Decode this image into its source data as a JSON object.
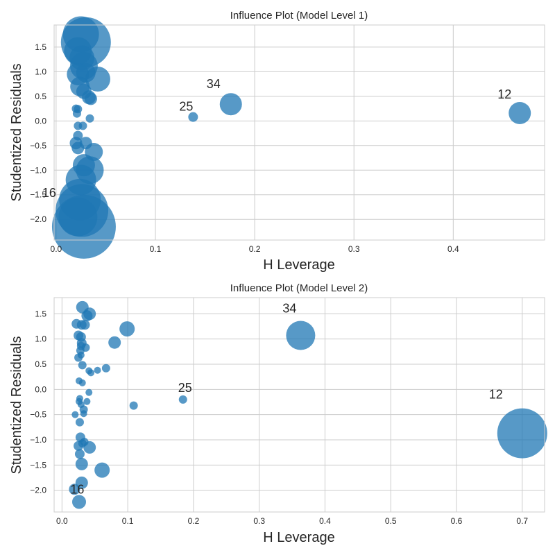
{
  "chart_data": [
    {
      "type": "scatter",
      "title": "Influence Plot (Model Level 1)",
      "xlabel": "H Leverage",
      "ylabel": "Studentized Residuals",
      "xlim": [
        -0.002,
        0.492
      ],
      "ylim": [
        -2.42,
        1.95
      ],
      "xticks": [
        0.0,
        0.1,
        0.2,
        0.3,
        0.4
      ],
      "xtick_labels": [
        "0.0",
        "0.1",
        "0.2",
        "0.3",
        "0.4"
      ],
      "yticks": [
        -2.0,
        -1.5,
        -1.0,
        -0.5,
        0.0,
        0.5,
        1.0,
        1.5
      ],
      "ytick_labels": [
        "−2.0",
        "−1.5",
        "−1.0",
        "−0.5",
        "0.0",
        "0.5",
        "1.0",
        "1.5"
      ],
      "grid": true,
      "color": "#1f77b4",
      "points": [
        {
          "x": 0.025,
          "y": 1.76,
          "size": 26
        },
        {
          "x": 0.03,
          "y": 1.6,
          "size": 36
        },
        {
          "x": 0.022,
          "y": 1.42,
          "size": 20
        },
        {
          "x": 0.026,
          "y": 1.28,
          "size": 18
        },
        {
          "x": 0.028,
          "y": 1.12,
          "size": 20
        },
        {
          "x": 0.022,
          "y": 0.95,
          "size": 16
        },
        {
          "x": 0.03,
          "y": 0.98,
          "size": 14
        },
        {
          "x": 0.042,
          "y": 0.85,
          "size": 18
        },
        {
          "x": 0.024,
          "y": 0.7,
          "size": 14
        },
        {
          "x": 0.028,
          "y": 0.6,
          "size": 11
        },
        {
          "x": 0.033,
          "y": 0.48,
          "size": 10
        },
        {
          "x": 0.035,
          "y": 0.45,
          "size": 9
        },
        {
          "x": 0.02,
          "y": 0.25,
          "size": 6
        },
        {
          "x": 0.022,
          "y": 0.24,
          "size": 6
        },
        {
          "x": 0.021,
          "y": 0.15,
          "size": 6
        },
        {
          "x": 0.034,
          "y": 0.05,
          "size": 6
        },
        {
          "x": 0.022,
          "y": -0.1,
          "size": 6
        },
        {
          "x": 0.027,
          "y": -0.1,
          "size": 6
        },
        {
          "x": 0.022,
          "y": -0.3,
          "size": 7
        },
        {
          "x": 0.03,
          "y": -0.45,
          "size": 9
        },
        {
          "x": 0.02,
          "y": -0.45,
          "size": 9
        },
        {
          "x": 0.022,
          "y": -0.55,
          "size": 9
        },
        {
          "x": 0.038,
          "y": -0.63,
          "size": 13
        },
        {
          "x": 0.028,
          "y": -0.9,
          "size": 16
        },
        {
          "x": 0.034,
          "y": -1.0,
          "size": 20
        },
        {
          "x": 0.025,
          "y": -1.2,
          "size": 22
        },
        {
          "x": 0.024,
          "y": -1.6,
          "size": 30
        },
        {
          "x": 0.026,
          "y": -1.82,
          "size": 38
        },
        {
          "x": 0.022,
          "y": -1.95,
          "size": 28
        },
        {
          "x": 0.028,
          "y": -2.15,
          "size": 46
        },
        {
          "x": 0.138,
          "y": 0.08,
          "size": 7,
          "label": "25"
        },
        {
          "x": 0.176,
          "y": 0.34,
          "size": 16,
          "label": "34"
        },
        {
          "x": 0.467,
          "y": 0.16,
          "size": 16,
          "label": "12"
        }
      ],
      "annotations": [
        {
          "text": "34",
          "x": 0.176,
          "y": 0.34,
          "dx": -25,
          "dy": -23
        },
        {
          "text": "25",
          "x": 0.138,
          "y": 0.08,
          "dx": -10,
          "dy": -9
        },
        {
          "text": "12",
          "x": 0.467,
          "y": 0.16,
          "dx": -22,
          "dy": -21
        },
        {
          "text": "16",
          "x": 0.0,
          "y": -1.55,
          "dx": -10,
          "dy": -0.5
        }
      ]
    },
    {
      "type": "scatter",
      "title": "Influence Plot (Model Level 2)",
      "xlabel": "H Leverage",
      "ylabel": "Studentized Residuals",
      "xlim": [
        -0.012,
        0.734
      ],
      "ylim": [
        -2.43,
        1.82
      ],
      "xticks": [
        0.0,
        0.1,
        0.2,
        0.3,
        0.4,
        0.5,
        0.6,
        0.7
      ],
      "xtick_labels": [
        "0.0",
        "0.1",
        "0.2",
        "0.3",
        "0.4",
        "0.5",
        "0.6",
        "0.7"
      ],
      "yticks": [
        -2.0,
        -1.5,
        -1.0,
        -0.5,
        0.0,
        0.5,
        1.0,
        1.5
      ],
      "ytick_labels": [
        "−2.0",
        "−1.5",
        "−1.0",
        "−0.5",
        "0.0",
        "0.5",
        "1.0",
        "1.5"
      ],
      "grid": true,
      "color": "#1f77b4",
      "points": [
        {
          "x": 0.031,
          "y": 1.63,
          "size": 9
        },
        {
          "x": 0.042,
          "y": 1.5,
          "size": 9
        },
        {
          "x": 0.038,
          "y": 1.46,
          "size": 8
        },
        {
          "x": 0.022,
          "y": 1.3,
          "size": 7
        },
        {
          "x": 0.03,
          "y": 1.28,
          "size": 7
        },
        {
          "x": 0.035,
          "y": 1.28,
          "size": 7
        },
        {
          "x": 0.099,
          "y": 1.2,
          "size": 11
        },
        {
          "x": 0.025,
          "y": 1.07,
          "size": 7
        },
        {
          "x": 0.029,
          "y": 1.04,
          "size": 7
        },
        {
          "x": 0.03,
          "y": 0.92,
          "size": 7
        },
        {
          "x": 0.08,
          "y": 0.93,
          "size": 9
        },
        {
          "x": 0.029,
          "y": 0.86,
          "size": 6
        },
        {
          "x": 0.036,
          "y": 0.83,
          "size": 6
        },
        {
          "x": 0.028,
          "y": 0.77,
          "size": 6
        },
        {
          "x": 0.029,
          "y": 0.68,
          "size": 5
        },
        {
          "x": 0.025,
          "y": 0.63,
          "size": 6
        },
        {
          "x": 0.031,
          "y": 0.48,
          "size": 6
        },
        {
          "x": 0.067,
          "y": 0.42,
          "size": 6
        },
        {
          "x": 0.054,
          "y": 0.38,
          "size": 5
        },
        {
          "x": 0.041,
          "y": 0.37,
          "size": 5
        },
        {
          "x": 0.044,
          "y": 0.33,
          "size": 5
        },
        {
          "x": 0.026,
          "y": 0.17,
          "size": 5
        },
        {
          "x": 0.031,
          "y": 0.13,
          "size": 5
        },
        {
          "x": 0.041,
          "y": -0.06,
          "size": 5
        },
        {
          "x": 0.027,
          "y": -0.18,
          "size": 5
        },
        {
          "x": 0.184,
          "y": -0.2,
          "size": 6,
          "label": "25"
        },
        {
          "x": 0.026,
          "y": -0.24,
          "size": 5
        },
        {
          "x": 0.038,
          "y": -0.24,
          "size": 5
        },
        {
          "x": 0.029,
          "y": -0.3,
          "size": 5
        },
        {
          "x": 0.109,
          "y": -0.32,
          "size": 6
        },
        {
          "x": 0.033,
          "y": -0.4,
          "size": 6
        },
        {
          "x": 0.033,
          "y": -0.48,
          "size": 5
        },
        {
          "x": 0.02,
          "y": -0.5,
          "size": 5
        },
        {
          "x": 0.027,
          "y": -0.65,
          "size": 6
        },
        {
          "x": 0.7,
          "y": -0.87,
          "size": 36,
          "label": "12"
        },
        {
          "x": 0.028,
          "y": -0.95,
          "size": 7
        },
        {
          "x": 0.034,
          "y": -1.04,
          "size": 6
        },
        {
          "x": 0.031,
          "y": -1.07,
          "size": 6
        },
        {
          "x": 0.025,
          "y": -1.12,
          "size": 7
        },
        {
          "x": 0.042,
          "y": -1.15,
          "size": 9
        },
        {
          "x": 0.027,
          "y": -1.28,
          "size": 7
        },
        {
          "x": 0.03,
          "y": -1.48,
          "size": 9
        },
        {
          "x": 0.061,
          "y": -1.6,
          "size": 11
        },
        {
          "x": 0.03,
          "y": -1.85,
          "size": 9
        },
        {
          "x": 0.019,
          "y": -1.98,
          "size": 8
        },
        {
          "x": 0.026,
          "y": -2.23,
          "size": 10
        },
        {
          "x": 0.363,
          "y": 1.07,
          "size": 21,
          "label": "34"
        }
      ],
      "annotations": [
        {
          "text": "34",
          "x": 0.363,
          "y": 1.07,
          "dx": -16,
          "dy": -33
        },
        {
          "text": "25",
          "x": 0.184,
          "y": -0.2,
          "dx": 3,
          "dy": -11
        },
        {
          "text": "12",
          "x": 0.7,
          "y": -0.87,
          "dx": -38,
          "dy": -50
        },
        {
          "text": "16",
          "x": 0.019,
          "y": -1.98,
          "dx": 4,
          "dy": 6
        }
      ]
    }
  ]
}
